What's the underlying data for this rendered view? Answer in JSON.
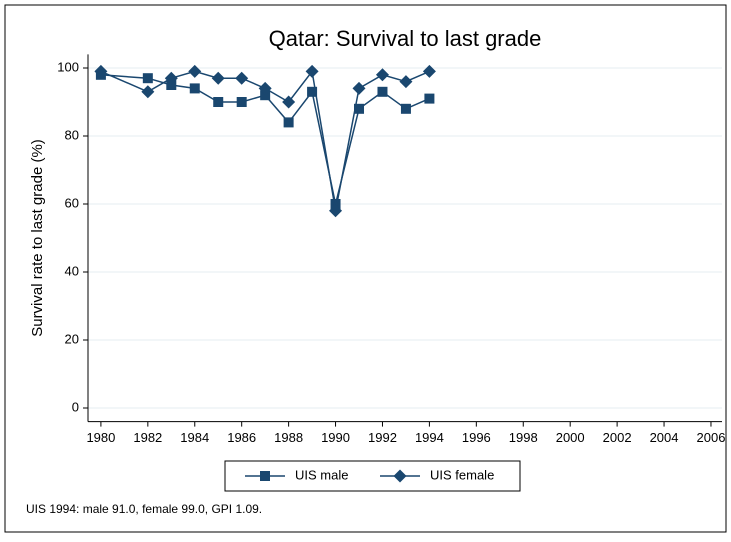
{
  "chart_data": {
    "type": "line",
    "title": "Qatar: Survival to last grade",
    "y_label": "Survival rate to last grade (%)",
    "note": "UIS 1994: male 91.0, female 99.0, GPI 1.09.",
    "x": [
      1980,
      1982,
      1983,
      1984,
      1985,
      1986,
      1987,
      1988,
      1989,
      1990,
      1991,
      1992,
      1993,
      1994
    ],
    "series": [
      {
        "name": "UIS male",
        "color": "#1a476f",
        "marker": "square",
        "values": [
          98,
          97,
          95,
          94,
          90,
          90,
          92,
          84,
          93,
          60,
          88,
          93,
          88,
          91
        ]
      },
      {
        "name": "UIS female",
        "color": "#1a476f",
        "marker": "diamond",
        "values": [
          99,
          93,
          97,
          99,
          97,
          97,
          94,
          90,
          99,
          58,
          94,
          98,
          96,
          99
        ]
      }
    ],
    "xlim": [
      1979.45,
      2006.47
    ],
    "xticks": [
      1980,
      1982,
      1984,
      1986,
      1988,
      1990,
      1992,
      1994,
      1996,
      1998,
      2000,
      2002,
      2004,
      2006
    ],
    "ylim": [
      -4,
      104
    ],
    "yticks": [
      0,
      20,
      40,
      60,
      80,
      100
    ],
    "grid": true,
    "legend": "bottom"
  }
}
